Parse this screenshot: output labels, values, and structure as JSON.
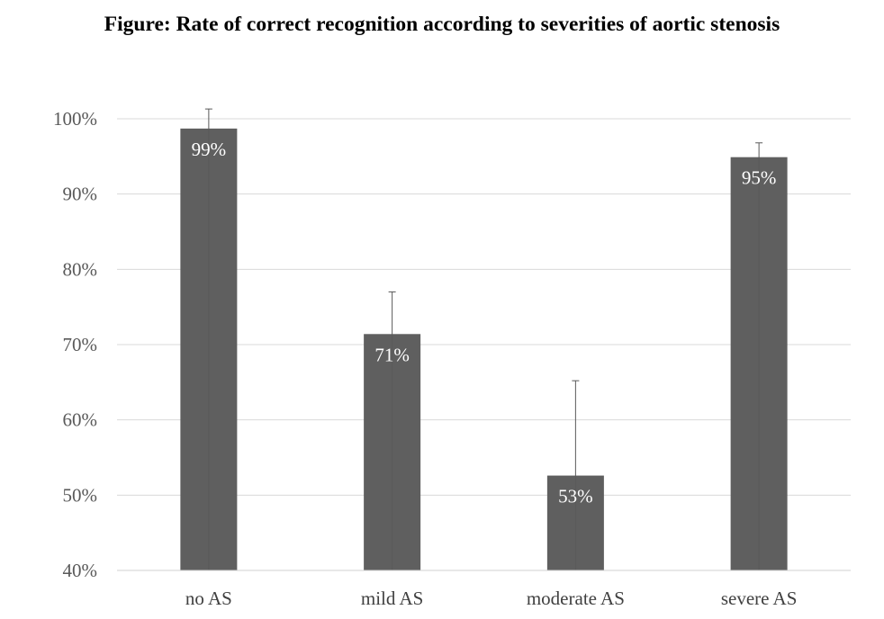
{
  "title": "Figure: Rate of correct recognition according to severities of aortic stenosis",
  "chart_data": {
    "type": "bar",
    "title": "Figure: Rate of correct recognition according to severities of aortic stenosis",
    "categories": [
      "no AS",
      "mild AS",
      "moderate AS",
      "severe AS"
    ],
    "values": [
      98.7,
      71.4,
      52.6,
      94.9
    ],
    "data_labels": [
      "99%",
      "71%",
      "53%",
      "95%"
    ],
    "error_upper": [
      101.3,
      77.0,
      65.2,
      96.8
    ],
    "ylim": [
      40,
      100
    ],
    "yticks": [
      40,
      50,
      60,
      70,
      80,
      90,
      100
    ],
    "ytick_labels": [
      "40%",
      "50%",
      "60%",
      "70%",
      "80%",
      "90%",
      "100%"
    ],
    "grid": true,
    "legend": "none",
    "colors": {
      "bar": "#5f5f5f",
      "grid": "#d9d9d9",
      "error": "#595959"
    }
  }
}
